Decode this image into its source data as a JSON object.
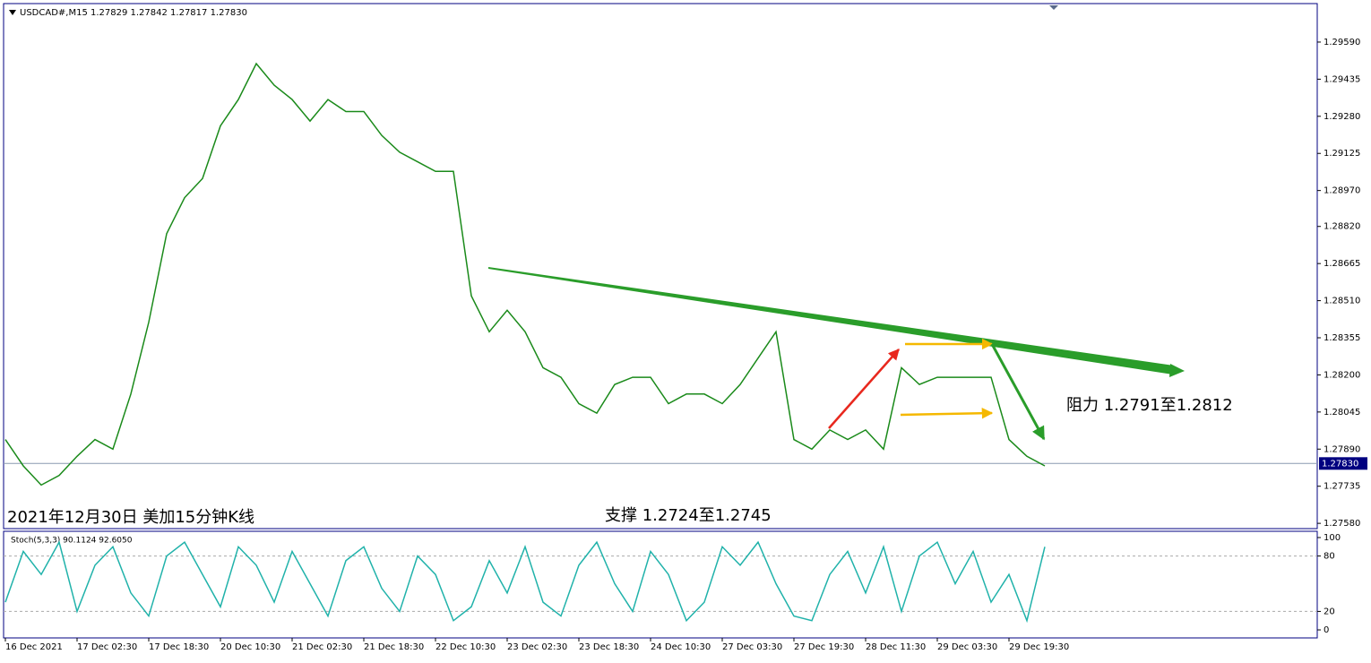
{
  "chart_data": [
    {
      "type": "line",
      "title": "USDCAD#,M15  1.27829 1.27842 1.27817 1.27830",
      "annotations": [
        "2021年12月30日 美加15分钟K线",
        "支撑 1.2724至1.2745",
        "阻力 1.2791至1.2812"
      ],
      "categories": [
        "16 Dec 2021",
        null,
        null,
        null,
        "17 Dec 02:30",
        null,
        null,
        null,
        "17 Dec 18:30",
        null,
        null,
        null,
        "20 Dec 10:30",
        null,
        null,
        null,
        "21 Dec 02:30",
        null,
        null,
        null,
        "21 Dec 18:30",
        null,
        null,
        null,
        "22 Dec 10:30",
        null,
        null,
        null,
        "23 Dec 02:30",
        null,
        null,
        null,
        "23 Dec 18:30",
        null,
        null,
        null,
        "24 Dec 10:30",
        null,
        null,
        null,
        "27 Dec 03:30",
        null,
        null,
        null,
        "27 Dec 19:30",
        null,
        null,
        null,
        "28 Dec 11:30",
        null,
        null,
        null,
        "29 Dec 03:30",
        null,
        null,
        null,
        "29 Dec 19:30",
        null,
        null
      ],
      "values": [
        1.2793,
        1.2782,
        1.2774,
        1.2778,
        1.2786,
        1.2793,
        1.2789,
        1.2812,
        1.2842,
        1.2879,
        1.2894,
        1.2902,
        1.2924,
        1.2935,
        1.295,
        1.2941,
        1.2935,
        1.2926,
        1.2935,
        1.293,
        1.293,
        1.292,
        1.2913,
        1.2909,
        1.2905,
        1.2905,
        1.2853,
        1.2838,
        1.2847,
        1.2838,
        1.2823,
        1.2819,
        1.2808,
        1.2804,
        1.2816,
        1.2819,
        1.2819,
        1.2808,
        1.2812,
        1.2812,
        1.2808,
        1.2816,
        1.2827,
        1.2838,
        1.2793,
        1.2789,
        1.2797,
        1.2793,
        1.2797,
        1.2789,
        1.2823,
        1.2816,
        1.2819,
        1.2819,
        1.2819,
        1.2819,
        1.2793,
        1.2786,
        1.2782
      ],
      "color": "#1a8a1a",
      "ylim": [
        1.27558,
        1.29747
      ],
      "yticks": [
        {
          "value": 1.2959,
          "label": "1.29590"
        },
        1.29435,
        {
          "value": 1.2928,
          "label": "1.29280"
        },
        1.29125,
        {
          "value": 1.2897,
          "label": "1.28970"
        },
        {
          "value": 1.2882,
          "label": "1.28820"
        },
        1.28665,
        {
          "value": 1.2851,
          "label": "1.28510"
        },
        1.28355,
        {
          "value": 1.282,
          "label": "1.28200"
        },
        1.28045,
        {
          "value": 1.2789,
          "label": "1.27890"
        },
        1.27735,
        {
          "value": 1.2758,
          "label": "1.27580"
        }
      ],
      "price_line": {
        "value": 1.2783,
        "label": "1.27830"
      }
    },
    {
      "type": "line",
      "title": "Stoch(5,3,3) 90.1124 92.6050",
      "values": [
        30,
        85,
        60,
        95,
        20,
        70,
        90,
        40,
        15,
        80,
        95,
        60,
        25,
        90,
        70,
        30,
        85,
        50,
        15,
        75,
        90,
        45,
        20,
        80,
        60,
        10,
        25,
        75,
        40,
        90,
        30,
        15,
        70,
        95,
        50,
        20,
        85,
        60,
        10,
        30,
        90,
        70,
        95,
        50,
        15,
        10,
        60,
        85,
        40,
        90,
        20,
        80,
        95,
        50,
        85,
        30,
        60,
        10,
        90
      ],
      "color": "#20b2aa",
      "ylim": [
        -8.7,
        105.8
      ],
      "yticks": [
        0,
        20,
        80,
        100
      ]
    }
  ]
}
